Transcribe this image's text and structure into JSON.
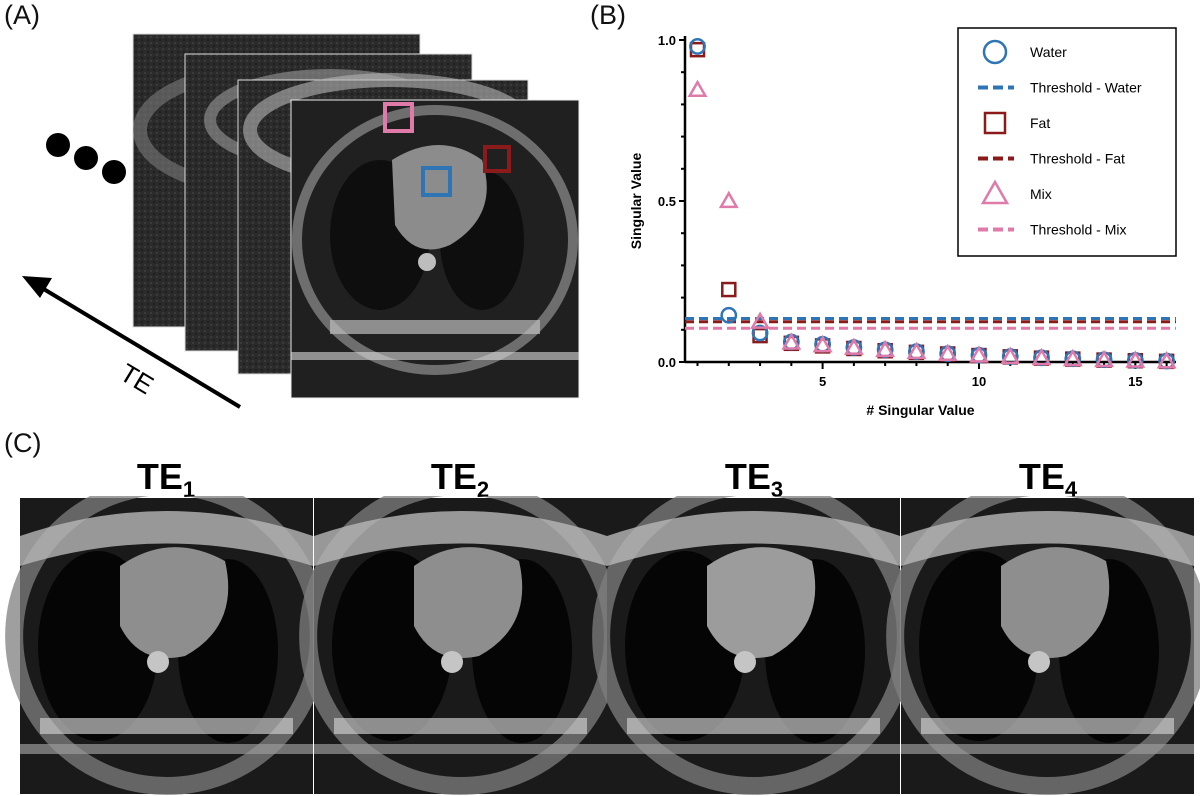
{
  "panels": {
    "a": "(A)",
    "b": "(B)",
    "c": "(C)"
  },
  "panel_a": {
    "arrow_label": "TE"
  },
  "panel_c": {
    "titles": [
      {
        "base": "TE",
        "sub": "1"
      },
      {
        "base": "TE",
        "sub": "2"
      },
      {
        "base": "TE",
        "sub": "3"
      },
      {
        "base": "TE",
        "sub": "4"
      }
    ]
  },
  "colors": {
    "water": "#2e75b6",
    "fat": "#8b1a1a",
    "mix": "#e07aa8"
  },
  "chart_data": {
    "type": "scatter",
    "title": "",
    "xlabel": "# Singular Value",
    "ylabel": "Singular Value",
    "xlim": [
      0.6,
      16.3
    ],
    "ylim": [
      0,
      1.0
    ],
    "x_ticks": [
      5,
      10,
      15
    ],
    "y_ticks": [
      "0.0",
      "0.5",
      "1.0"
    ],
    "legend_position": "top-right",
    "grid": false,
    "x": [
      1,
      2,
      3,
      4,
      5,
      6,
      7,
      8,
      9,
      10,
      11,
      12,
      13,
      14,
      15,
      16
    ],
    "series": [
      {
        "name": "Water",
        "marker": "circle",
        "color": "#2e75b6",
        "values": [
          0.98,
          0.145,
          0.09,
          0.062,
          0.055,
          0.045,
          0.038,
          0.032,
          0.026,
          0.021,
          0.017,
          0.013,
          0.01,
          0.007,
          0.005,
          0.003
        ]
      },
      {
        "name": "Fat",
        "marker": "square",
        "color": "#8b1a1a",
        "values": [
          0.97,
          0.225,
          0.082,
          0.058,
          0.05,
          0.042,
          0.035,
          0.03,
          0.025,
          0.02,
          0.016,
          0.012,
          0.009,
          0.006,
          0.004,
          0.002
        ]
      },
      {
        "name": "Mix",
        "marker": "triangle",
        "color": "#e07aa8",
        "values": [
          0.845,
          0.5,
          0.125,
          0.06,
          0.052,
          0.044,
          0.037,
          0.031,
          0.025,
          0.02,
          0.016,
          0.012,
          0.009,
          0.006,
          0.004,
          0.002
        ]
      }
    ],
    "thresholds": [
      {
        "name": "Threshold - Water",
        "value": 0.135,
        "color": "#2e75b6"
      },
      {
        "name": "Threshold - Fat",
        "value": 0.125,
        "color": "#8b1a1a"
      },
      {
        "name": "Threshold - Mix",
        "value": 0.105,
        "color": "#e07aa8"
      }
    ],
    "legend": [
      "Water",
      "Threshold - Water",
      "Fat",
      "Threshold - Fat",
      "Mix",
      "Threshold - Mix"
    ]
  }
}
